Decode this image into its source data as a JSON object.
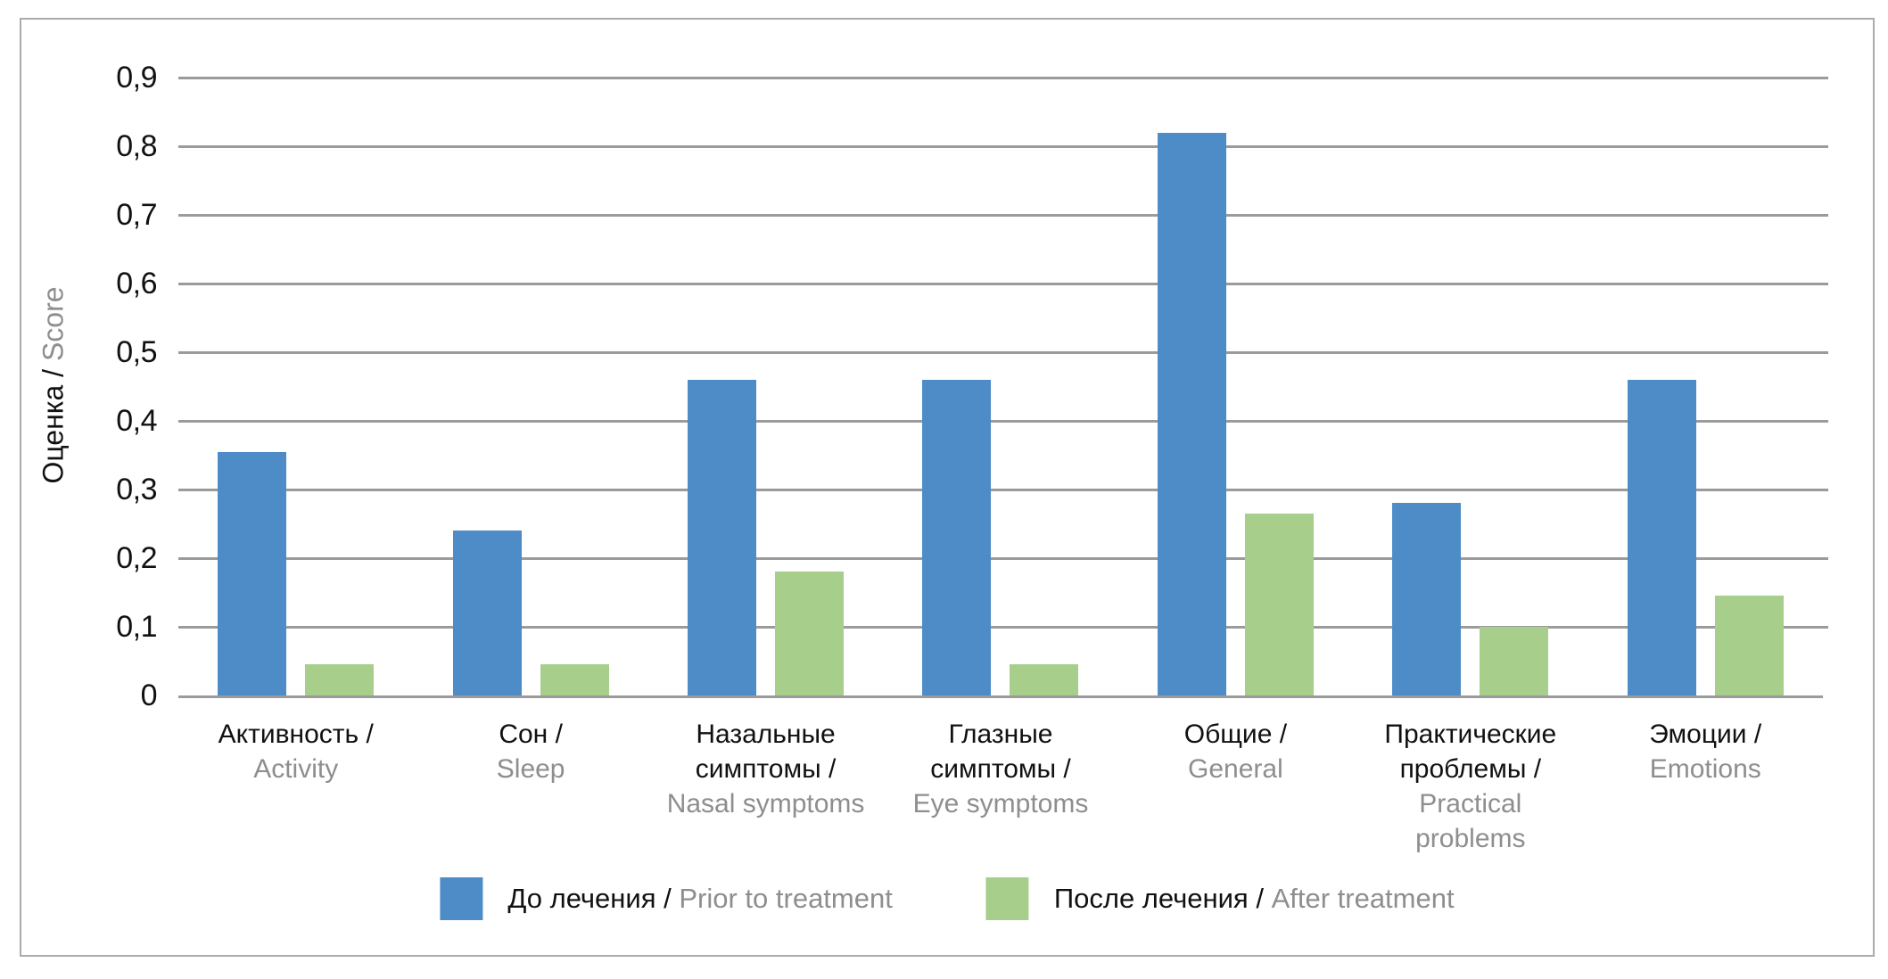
{
  "figure": {
    "background": "#ffffff",
    "border_color": "#ababab"
  },
  "colors": {
    "grid": "#9b9b9b",
    "axis_text": "#111111",
    "secondary_text": "#8e8e8e",
    "blue_series": "#4e8cc8",
    "green_series": "#a8ce8c"
  },
  "y_axis": {
    "title_ru": "Оценка /",
    "title_en": "Score",
    "tick_labels": [
      "0",
      "0,1",
      "0,2",
      "0,3",
      "0,4",
      "0,5",
      "0,6",
      "0,7",
      "0,8",
      "0,9"
    ]
  },
  "chart_data": {
    "type": "bar",
    "title": "",
    "xlabel": "",
    "ylabel": "Оценка / Score",
    "ylim": [
      0,
      0.9
    ],
    "ytick_step": 0.1,
    "decimal_separator": ",",
    "grid": true,
    "legend_position": "bottom",
    "categories": [
      {
        "ru": "Активность /",
        "en": "Activity"
      },
      {
        "ru": "Сон /",
        "en": "Sleep"
      },
      {
        "ru": "Назальные симптомы /",
        "en": "Nasal symptoms"
      },
      {
        "ru": "Глазные симптомы /",
        "en": "Eye symptoms"
      },
      {
        "ru": "Общие /",
        "en": "General"
      },
      {
        "ru": "Практические проблемы /",
        "en": "Practical problems"
      },
      {
        "ru": "Эмоции /",
        "en": "Emotions"
      }
    ],
    "series": [
      {
        "name_ru": "До лечения /",
        "name_en": "Prior to treatment",
        "color": "#4e8cc8",
        "values": [
          0.355,
          0.24,
          0.46,
          0.46,
          0.82,
          0.28,
          0.46
        ]
      },
      {
        "name_ru": "После лечения /",
        "name_en": "After treatment",
        "color": "#a8ce8c",
        "values": [
          0.045,
          0.045,
          0.18,
          0.045,
          0.265,
          0.1,
          0.145
        ]
      }
    ]
  }
}
